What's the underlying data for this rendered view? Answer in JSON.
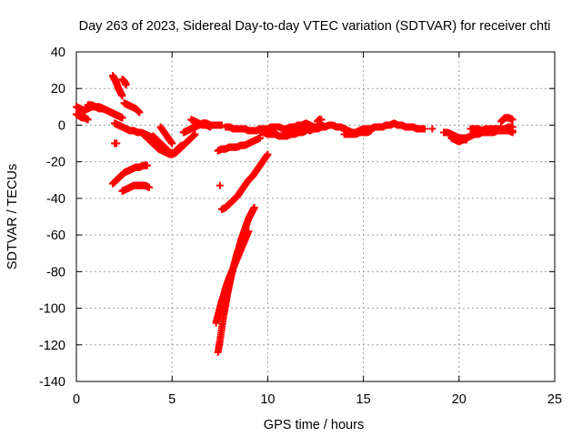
{
  "chart_data": {
    "type": "scatter",
    "title": "Day 263 of 2023, Sidereal Day-to-day VTEC variation (SDTVAR) for receiver chti",
    "xlabel": "GPS time / hours",
    "ylabel": "SDTVAR / TECUs",
    "xlim": [
      0,
      25
    ],
    "ylim": [
      -140,
      40
    ],
    "x_ticks": [
      0,
      5,
      10,
      15,
      20,
      25
    ],
    "y_ticks": [
      -140,
      -120,
      -100,
      -80,
      -60,
      -40,
      -20,
      0,
      20,
      40
    ],
    "grid": true,
    "marker": "plus",
    "marker_color": "#ff0000",
    "series": [
      {
        "segments": [
          {
            "x": [
              0.0,
              0.2,
              0.4,
              0.6,
              0.8,
              1.0,
              1.2,
              1.4,
              1.6,
              1.8,
              2.0,
              2.2,
              2.4
            ],
            "y": [
              10,
              9,
              8,
              9,
              10,
              10,
              9,
              9,
              8,
              7,
              6,
              5,
              4
            ]
          },
          {
            "x": [
              0.0,
              0.15,
              0.3,
              0.45,
              0.6
            ],
            "y": [
              6,
              5,
              4,
              4,
              3
            ]
          },
          {
            "x": [
              0.6,
              0.8,
              1.0,
              1.2,
              1.4,
              1.6,
              1.8,
              2.0,
              2.2,
              2.4
            ],
            "y": [
              11,
              11,
              10,
              10,
              9,
              8,
              7,
              6,
              5,
              4
            ]
          },
          {
            "x": [
              1.9,
              2.0,
              2.1,
              2.2,
              2.3,
              2.4
            ],
            "y": [
              27,
              25,
              23,
              20,
              18,
              16
            ]
          },
          {
            "x": [
              2.4,
              2.5,
              2.6
            ],
            "y": [
              25,
              24,
              22
            ]
          },
          {
            "x": [
              2.5,
              2.7,
              2.9,
              3.1,
              3.3
            ],
            "y": [
              12,
              11,
              10,
              9,
              7
            ]
          },
          {
            "x": [
              2.0,
              2.1
            ],
            "y": [
              -10,
              -10
            ]
          },
          {
            "x": [
              1.9,
              2.1,
              2.3,
              2.5,
              2.7,
              2.9,
              3.1,
              3.3,
              3.5,
              3.7
            ],
            "y": [
              -32,
              -30,
              -28,
              -26,
              -25,
              -24,
              -23,
              -23,
              -22,
              -22
            ]
          },
          {
            "x": [
              2.4,
              2.6,
              2.8,
              3.0,
              3.2,
              3.4,
              3.6,
              3.8
            ],
            "y": [
              -36,
              -35,
              -34,
              -33,
              -33,
              -33,
              -33,
              -34
            ]
          },
          {
            "x": [
              2.0,
              2.2,
              2.4,
              2.6,
              2.8,
              3.0,
              3.2,
              3.4,
              3.6,
              3.8,
              4.0
            ],
            "y": [
              1,
              0,
              -1,
              -2,
              -3,
              -3,
              -4,
              -4,
              -5,
              -6,
              -7
            ]
          },
          {
            "x": [
              3.5,
              3.7,
              3.9,
              4.1,
              4.3,
              4.5,
              4.7,
              4.9,
              5.1,
              5.3,
              5.5
            ],
            "y": [
              -5,
              -7,
              -9,
              -11,
              -13,
              -14,
              -15,
              -16,
              -15,
              -13,
              -11
            ]
          },
          {
            "x": [
              4.0,
              4.2,
              4.4,
              4.6,
              4.8,
              5.0,
              5.2,
              5.4,
              5.6,
              5.8,
              6.0,
              6.2
            ],
            "y": [
              -6,
              -8,
              -10,
              -12,
              -14,
              -16,
              -15,
              -13,
              -11,
              -9,
              -7,
              -5
            ]
          },
          {
            "x": [
              4.4,
              4.6,
              4.8,
              5.0
            ],
            "y": [
              -1,
              -4,
              -7,
              -10
            ]
          },
          {
            "x": [
              5.6,
              5.8,
              6.0,
              6.2,
              6.4,
              6.6,
              6.8,
              7.0,
              7.2,
              7.4,
              7.6
            ],
            "y": [
              -4,
              -3,
              -2,
              -1,
              0,
              1,
              1,
              0,
              0,
              0,
              0
            ]
          },
          {
            "x": [
              6.0,
              6.2,
              6.4,
              6.6,
              6.8,
              7.0
            ],
            "y": [
              3,
              2,
              1,
              0,
              0,
              -1
            ]
          },
          {
            "x": [
              7.4,
              7.6,
              7.8,
              8.0,
              8.2,
              8.4,
              8.6,
              8.8,
              9.0,
              9.2,
              9.4,
              9.6
            ],
            "y": [
              -14,
              -13,
              -13,
              -12,
              -12,
              -12,
              -11,
              -11,
              -10,
              -9,
              -8,
              -7
            ]
          },
          {
            "x": [
              7.5
            ],
            "y": [
              -33
            ]
          },
          {
            "x": [
              7.6,
              7.8,
              8.0,
              8.2,
              8.4,
              8.6,
              8.8,
              9.0,
              9.2,
              9.4,
              9.6,
              9.8,
              10.0
            ],
            "y": [
              -46,
              -45,
              -43,
              -41,
              -39,
              -36,
              -33,
              -30,
              -28,
              -25,
              -22,
              -19,
              -16
            ]
          },
          {
            "x": [
              7.4,
              7.5,
              7.6,
              7.7,
              7.8,
              7.9,
              8.0,
              8.1,
              8.2,
              8.3,
              8.4,
              8.5,
              8.6,
              8.7,
              8.8,
              8.9,
              9.0,
              9.1,
              9.2,
              9.3
            ],
            "y": [
              -124,
              -118,
              -111,
              -104,
              -98,
              -92,
              -87,
              -82,
              -78,
              -74,
              -70,
              -67,
              -63,
              -60,
              -57,
              -54,
              -51,
              -49,
              -47,
              -45
            ]
          },
          {
            "x": [
              7.3,
              7.4,
              7.5,
              7.6,
              7.7,
              7.8,
              7.9,
              8.0,
              8.2,
              8.4,
              8.6,
              8.8,
              9.0
            ],
            "y": [
              -108,
              -104,
              -100,
              -96,
              -93,
              -89,
              -86,
              -83,
              -78,
              -73,
              -68,
              -63,
              -58
            ]
          },
          {
            "x": [
              7.8,
              8.0,
              8.2,
              8.4,
              8.6,
              8.8,
              9.0,
              9.2,
              9.4,
              9.6,
              9.8,
              10.0,
              10.2,
              10.4,
              10.6,
              10.8,
              11.0,
              11.2,
              11.4,
              11.6,
              11.8,
              12.0,
              12.2,
              12.4,
              12.6,
              12.8,
              13.0
            ],
            "y": [
              -1,
              -1,
              -2,
              -2,
              -2,
              -2,
              -3,
              -3,
              -3,
              -2,
              -2,
              -2,
              -1,
              -1,
              -1,
              -2,
              -2,
              -1,
              -1,
              0,
              0,
              1,
              0,
              -1,
              -1,
              0,
              -1
            ]
          },
          {
            "x": [
              9.6,
              9.8,
              10.0,
              10.2,
              10.4,
              10.6,
              10.8,
              11.0,
              11.2,
              11.4,
              11.6,
              11.8,
              12.0
            ],
            "y": [
              -4,
              -4,
              -5,
              -5,
              -5,
              -6,
              -6,
              -6,
              -5,
              -5,
              -4,
              -4,
              -3
            ]
          },
          {
            "x": [
              12.0,
              12.2,
              12.4,
              12.6,
              12.8,
              13.0,
              13.2,
              13.4,
              13.6,
              13.8,
              14.0,
              14.2,
              14.4,
              14.6,
              14.8,
              15.0,
              15.2,
              15.4,
              15.6,
              15.8,
              16.0,
              16.2,
              16.4,
              16.6,
              16.8,
              17.0,
              17.2,
              17.4,
              17.6,
              17.8,
              18.0,
              18.2
            ],
            "y": [
              -2,
              -3,
              -2,
              -2,
              -1,
              -1,
              0,
              0,
              -1,
              -1,
              -2,
              -3,
              -4,
              -4,
              -3,
              -2,
              -2,
              -2,
              -1,
              -1,
              -1,
              0,
              0,
              1,
              0,
              0,
              -1,
              -1,
              -1,
              -2,
              -2,
              -2
            ]
          },
          {
            "x": [
              12.6,
              12.7,
              12.8
            ],
            "y": [
              2,
              3,
              3
            ]
          },
          {
            "x": [
              14.0,
              14.2,
              14.4,
              14.6,
              14.8,
              15.0,
              15.2,
              15.4
            ],
            "y": [
              -5,
              -5,
              -5,
              -5,
              -4,
              -4,
              -4,
              -3
            ]
          },
          {
            "x": [
              18.6
            ],
            "y": [
              -2
            ]
          },
          {
            "x": [
              19.2,
              19.4,
              19.6,
              19.8,
              20.0,
              20.2,
              20.4,
              20.6,
              20.8,
              21.0,
              21.2,
              21.4,
              21.6,
              21.8,
              22.0,
              22.2,
              22.4,
              22.6,
              22.8
            ],
            "y": [
              -4,
              -4,
              -5,
              -6,
              -7,
              -7,
              -7,
              -6,
              -5,
              -5,
              -4,
              -4,
              -4,
              -4,
              -3,
              -3,
              -3,
              -3,
              -3
            ]
          },
          {
            "x": [
              19.6,
              19.8,
              20.0,
              20.2,
              20.4
            ],
            "y": [
              -7,
              -8,
              -9,
              -8,
              -8
            ]
          },
          {
            "x": [
              20.6,
              20.8,
              21.0,
              21.2,
              21.4,
              21.6,
              21.8,
              22.0,
              22.2,
              22.4,
              22.6,
              22.8
            ],
            "y": [
              -2,
              -2,
              -2,
              -3,
              -2,
              -2,
              -2,
              -2,
              -2,
              -2,
              -1,
              -1
            ]
          },
          {
            "x": [
              22.2,
              22.4,
              22.6,
              22.8
            ],
            "y": [
              2,
              4,
              4,
              3
            ]
          },
          {
            "x": [
              22.6,
              22.8
            ],
            "y": [
              -3,
              -4
            ]
          }
        ]
      }
    ]
  }
}
